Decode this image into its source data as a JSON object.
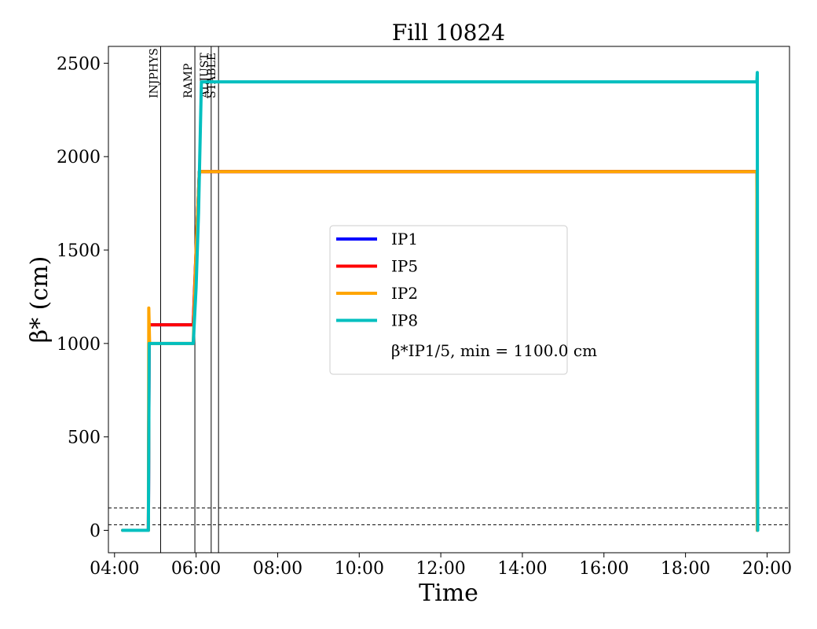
{
  "chart_data": {
    "type": "line",
    "title": "Fill 10824",
    "xlabel": "Time",
    "ylabel": "β* (cm)",
    "x_unit": "hours",
    "xlim": [
      "04:00",
      "20:00"
    ],
    "xlim_hours": [
      3.85,
      20.55
    ],
    "ylim": [
      -120,
      2590
    ],
    "x_ticks": [
      {
        "label": "04:00",
        "value": 4
      },
      {
        "label": "06:00",
        "value": 6
      },
      {
        "label": "08:00",
        "value": 8
      },
      {
        "label": "10:00",
        "value": 10
      },
      {
        "label": "12:00",
        "value": 12
      },
      {
        "label": "14:00",
        "value": 14
      },
      {
        "label": "16:00",
        "value": 16
      },
      {
        "label": "18:00",
        "value": 18
      },
      {
        "label": "20:00",
        "value": 20
      }
    ],
    "y_ticks": [
      0,
      500,
      1000,
      1500,
      2000,
      2500
    ],
    "grid": false,
    "legend_position": "center",
    "legend_note": "β*IP1/5, min = 1100.0 cm",
    "phase_lines": [
      {
        "label": "INJPHYS",
        "time": 5.13
      },
      {
        "label": "RAMP",
        "time": 5.97
      },
      {
        "label": "ADJUST",
        "time": 6.37
      },
      {
        "label": "STABLE",
        "time": 6.55
      }
    ],
    "hlines": [
      30,
      120
    ],
    "series": [
      {
        "name": "IP1",
        "color": "#0000ff",
        "points": [
          [
            4.2,
            0
          ],
          [
            4.83,
            0
          ],
          [
            4.85,
            1100
          ],
          [
            5.93,
            1100
          ],
          [
            6.0,
            1500
          ],
          [
            6.08,
            1920
          ],
          [
            19.75,
            1920
          ],
          [
            19.76,
            0
          ]
        ]
      },
      {
        "name": "IP5",
        "color": "#ff0000",
        "points": [
          [
            4.2,
            0
          ],
          [
            4.83,
            0
          ],
          [
            4.85,
            1100
          ],
          [
            5.93,
            1100
          ],
          [
            6.0,
            1500
          ],
          [
            6.08,
            1920
          ],
          [
            19.75,
            1920
          ],
          [
            19.76,
            0
          ]
        ]
      },
      {
        "name": "IP2",
        "color": "#ffa500",
        "points": [
          [
            4.2,
            0
          ],
          [
            4.83,
            0
          ],
          [
            4.84,
            1190
          ],
          [
            4.86,
            1000
          ],
          [
            5.93,
            1000
          ],
          [
            6.0,
            1500
          ],
          [
            6.08,
            1920
          ],
          [
            19.75,
            1920
          ],
          [
            19.76,
            0
          ]
        ]
      },
      {
        "name": "IP8",
        "color": "#00bfbf",
        "points": [
          [
            4.2,
            0
          ],
          [
            4.83,
            0
          ],
          [
            4.85,
            1000
          ],
          [
            5.93,
            1000
          ],
          [
            6.0,
            1300
          ],
          [
            6.06,
            1700
          ],
          [
            6.13,
            2400
          ],
          [
            19.75,
            2400
          ],
          [
            19.76,
            2450
          ],
          [
            19.77,
            0
          ]
        ]
      }
    ]
  }
}
